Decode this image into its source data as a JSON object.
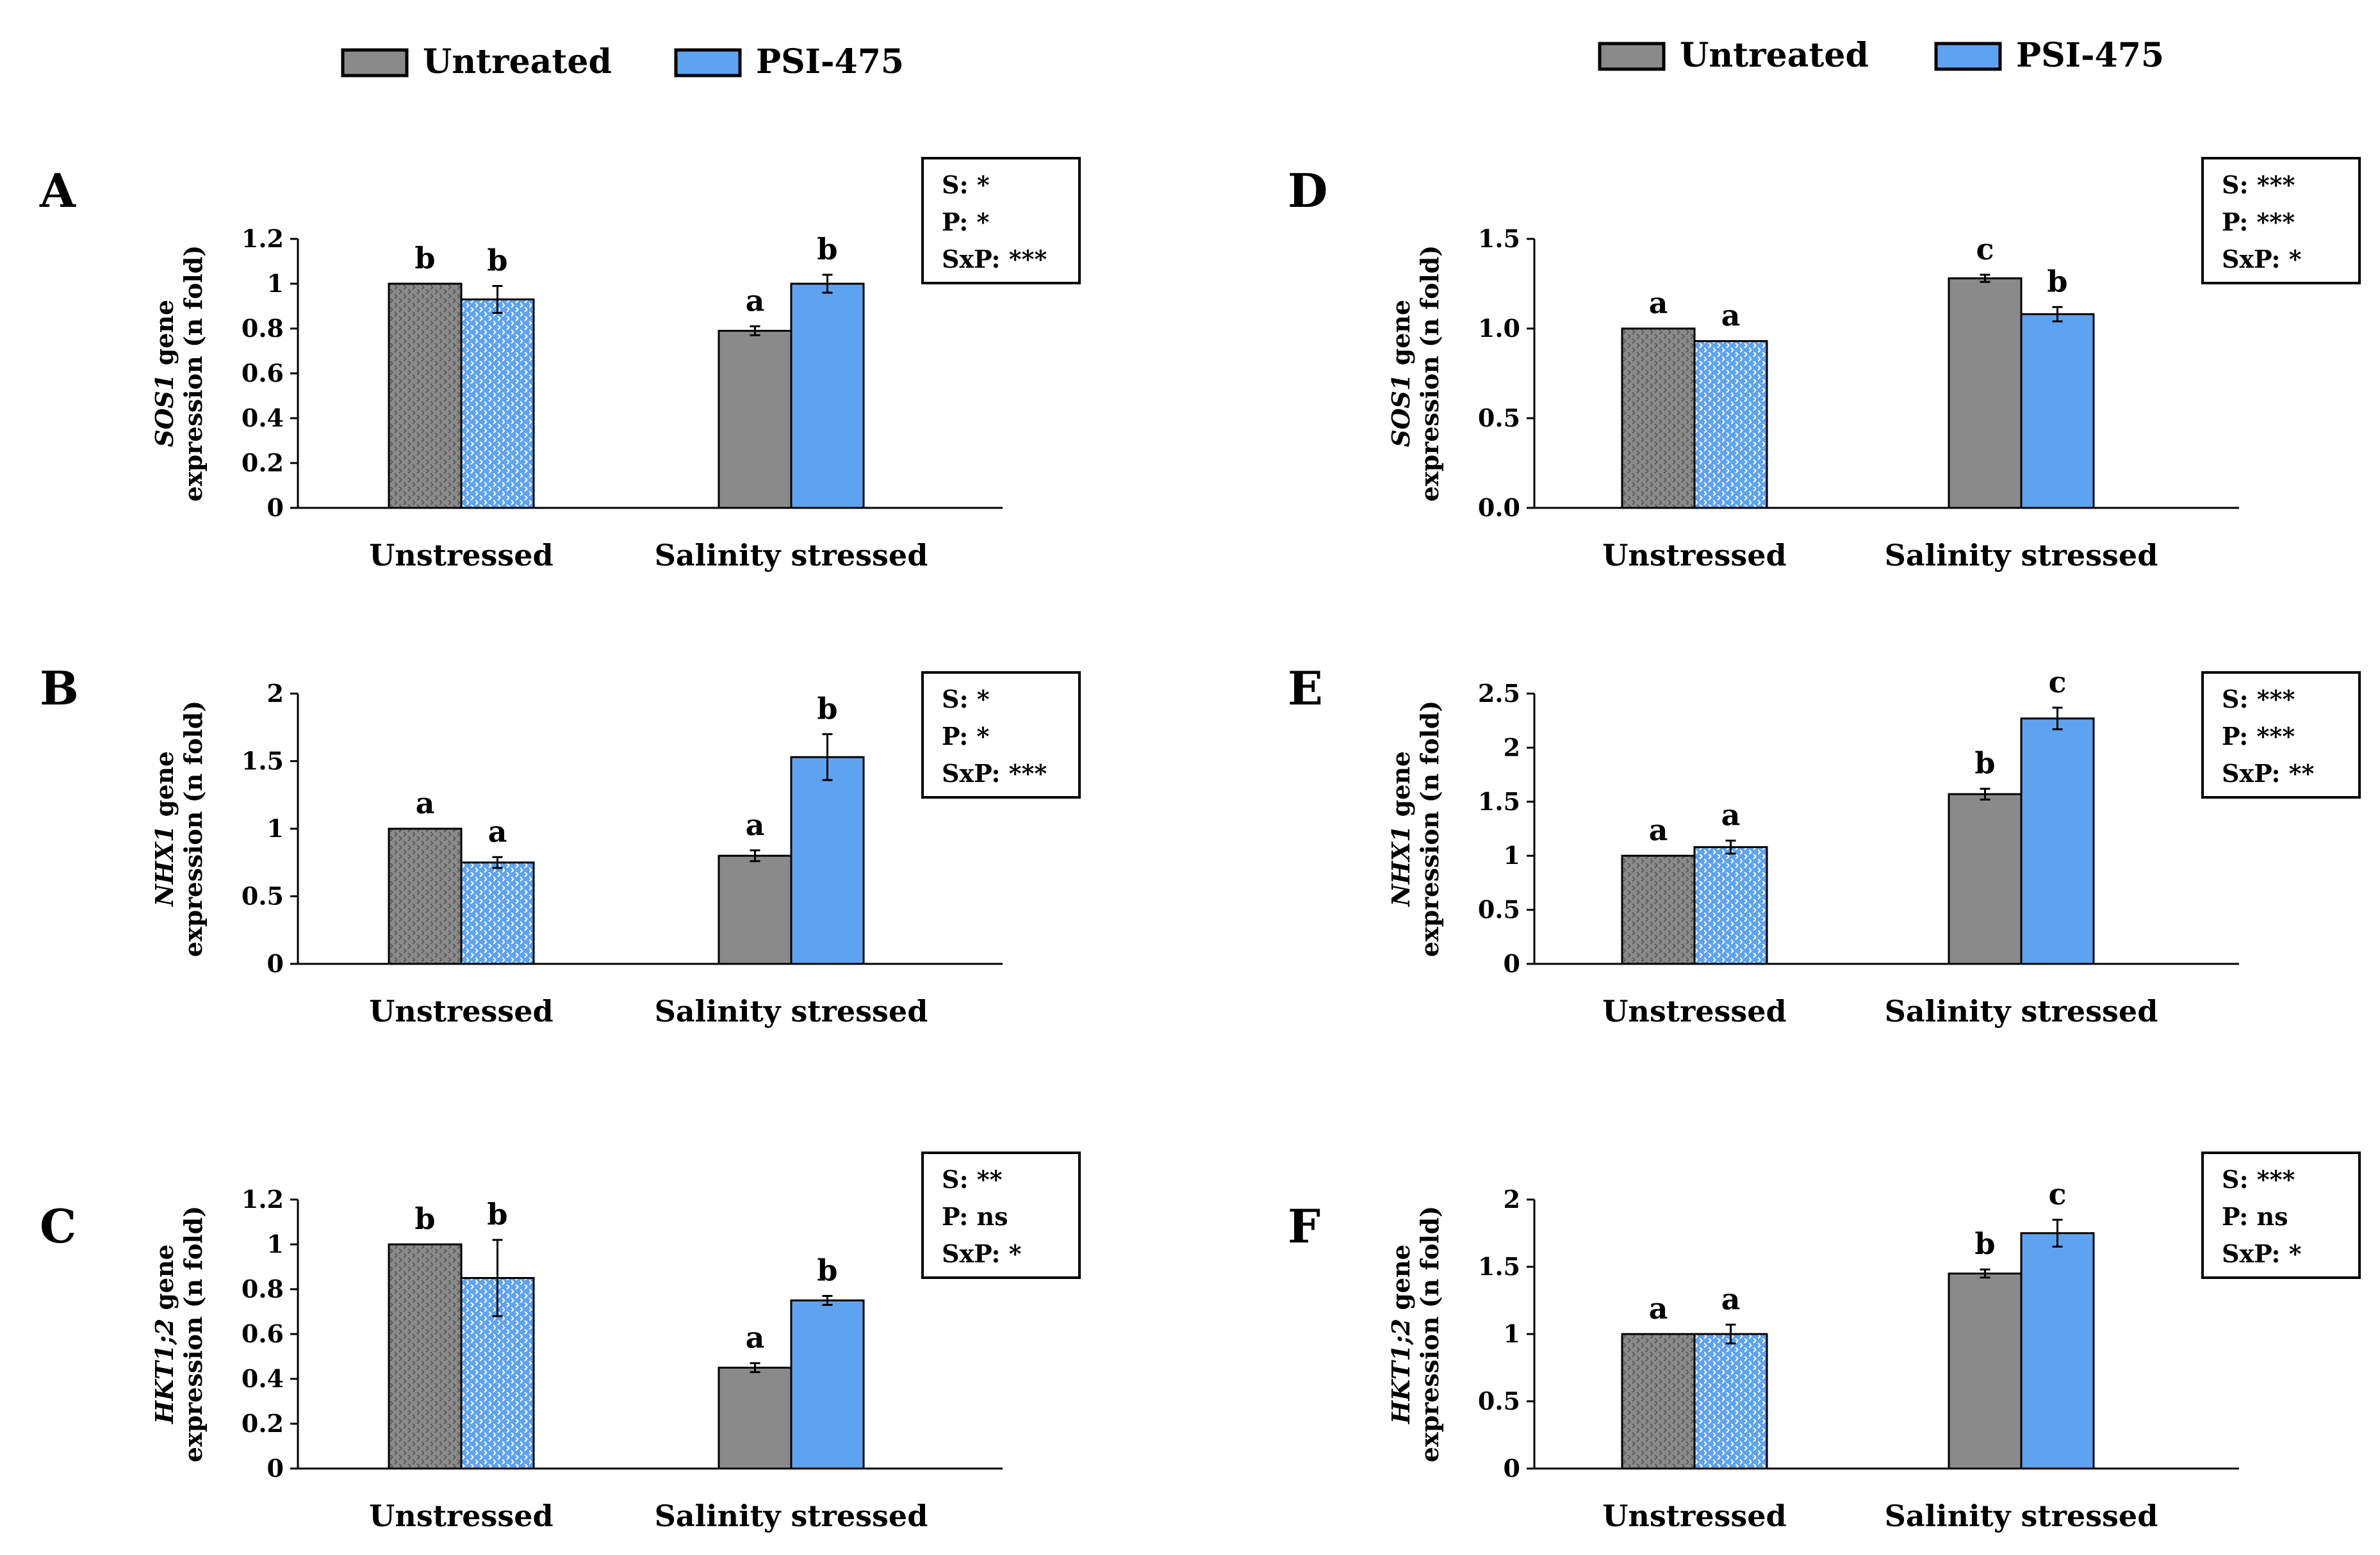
{
  "colors": {
    "untreated": "#8a8a8a",
    "psi475": "#5ea3f2",
    "axis": "#000000"
  },
  "legends": [
    {
      "items": [
        {
          "label": "Untreated",
          "series": "untreated"
        },
        {
          "label": "PSI-475",
          "series": "psi475"
        }
      ]
    },
    {
      "items": [
        {
          "label": "Untreated",
          "series": "untreated"
        },
        {
          "label": "PSI-475",
          "series": "psi475"
        }
      ]
    }
  ],
  "chart_data": [
    {
      "panel": "A",
      "type": "bar",
      "ylabel_gene": "SOS1",
      "ylabel_rest": " gene",
      "ylabel_line2": "expression (n fold)",
      "categories": [
        "Unstressed",
        "Salinity stressed"
      ],
      "ylim": [
        0,
        1.2
      ],
      "yticks": [
        {
          "value": 0,
          "label": "0"
        },
        {
          "value": 0.2,
          "label": "0.2"
        },
        {
          "value": 0.4,
          "label": "0.4"
        },
        {
          "value": 0.6,
          "label": "0.6"
        },
        {
          "value": 0.8,
          "label": "0.8"
        },
        {
          "value": 1.0,
          "label": "1"
        },
        {
          "value": 1.2,
          "label": "1.2"
        }
      ],
      "series": [
        {
          "name": "Untreated",
          "key": "untreated",
          "values": [
            1.0,
            0.79
          ],
          "errors": [
            0,
            0.02
          ],
          "letters": [
            "b",
            "a"
          ]
        },
        {
          "name": "PSI-475",
          "key": "psi475",
          "values": [
            0.93,
            1.0
          ],
          "errors": [
            0.06,
            0.04
          ],
          "letters": [
            "b",
            "b"
          ]
        }
      ],
      "stats": [
        "S: *",
        "P: *",
        "SxP: ***"
      ]
    },
    {
      "panel": "B",
      "type": "bar",
      "ylabel_gene": "NHX1",
      "ylabel_rest": " gene",
      "ylabel_line2": "expression (n fold)",
      "categories": [
        "Unstressed",
        "Salinity stressed"
      ],
      "ylim": [
        0,
        2
      ],
      "yticks": [
        {
          "value": 0,
          "label": "0"
        },
        {
          "value": 0.5,
          "label": "0.5"
        },
        {
          "value": 1.0,
          "label": "1"
        },
        {
          "value": 1.5,
          "label": "1.5"
        },
        {
          "value": 2.0,
          "label": "2"
        }
      ],
      "series": [
        {
          "name": "Untreated",
          "key": "untreated",
          "values": [
            1.0,
            0.8
          ],
          "errors": [
            0,
            0.04
          ],
          "letters": [
            "a",
            "a"
          ]
        },
        {
          "name": "PSI-475",
          "key": "psi475",
          "values": [
            0.75,
            1.53
          ],
          "errors": [
            0.04,
            0.17
          ],
          "letters": [
            "a",
            "b"
          ]
        }
      ],
      "stats": [
        "S: *",
        "P: *",
        "SxP: ***"
      ]
    },
    {
      "panel": "C",
      "type": "bar",
      "ylabel_gene": "HKT1;2",
      "ylabel_rest": " gene",
      "ylabel_line2": "expression (n fold)",
      "categories": [
        "Unstressed",
        "Salinity stressed"
      ],
      "ylim": [
        0,
        1.2
      ],
      "yticks": [
        {
          "value": 0,
          "label": "0"
        },
        {
          "value": 0.2,
          "label": "0.2"
        },
        {
          "value": 0.4,
          "label": "0.4"
        },
        {
          "value": 0.6,
          "label": "0.6"
        },
        {
          "value": 0.8,
          "label": "0.8"
        },
        {
          "value": 1.0,
          "label": "1"
        },
        {
          "value": 1.2,
          "label": "1.2"
        }
      ],
      "series": [
        {
          "name": "Untreated",
          "key": "untreated",
          "values": [
            1.0,
            0.45
          ],
          "errors": [
            0,
            0.02
          ],
          "letters": [
            "b",
            "a"
          ]
        },
        {
          "name": "PSI-475",
          "key": "psi475",
          "values": [
            0.85,
            0.75
          ],
          "errors": [
            0.17,
            0.02
          ],
          "letters": [
            "b",
            "b"
          ]
        }
      ],
      "stats": [
        "S: **",
        "P: ns",
        "SxP: *"
      ]
    },
    {
      "panel": "D",
      "type": "bar",
      "ylabel_gene": "SOS1",
      "ylabel_rest": " gene",
      "ylabel_line2": "expression (n fold)",
      "categories": [
        "Unstressed",
        "Salinity stressed"
      ],
      "ylim": [
        0,
        1.5
      ],
      "yticks": [
        {
          "value": 0,
          "label": "0.0"
        },
        {
          "value": 0.5,
          "label": "0.5"
        },
        {
          "value": 1.0,
          "label": "1.0"
        },
        {
          "value": 1.5,
          "label": "1.5"
        }
      ],
      "series": [
        {
          "name": "Untreated",
          "key": "untreated",
          "values": [
            1.0,
            1.28
          ],
          "errors": [
            0,
            0.02
          ],
          "letters": [
            "a",
            "c"
          ]
        },
        {
          "name": "PSI-475",
          "key": "psi475",
          "values": [
            0.93,
            1.08
          ],
          "errors": [
            0,
            0.04
          ],
          "letters": [
            "a",
            "b"
          ]
        }
      ],
      "stats": [
        "S: ***",
        "P: ***",
        "SxP: *"
      ]
    },
    {
      "panel": "E",
      "type": "bar",
      "ylabel_gene": "NHX1",
      "ylabel_rest": " gene",
      "ylabel_line2": "expression (n fold)",
      "categories": [
        "Unstressed",
        "Salinity stressed"
      ],
      "ylim": [
        0,
        2.5
      ],
      "yticks": [
        {
          "value": 0,
          "label": "0"
        },
        {
          "value": 0.5,
          "label": "0.5"
        },
        {
          "value": 1.0,
          "label": "1"
        },
        {
          "value": 1.5,
          "label": "1.5"
        },
        {
          "value": 2.0,
          "label": "2"
        },
        {
          "value": 2.5,
          "label": "2.5"
        }
      ],
      "series": [
        {
          "name": "Untreated",
          "key": "untreated",
          "values": [
            1.0,
            1.57
          ],
          "errors": [
            0,
            0.05
          ],
          "letters": [
            "a",
            "b"
          ]
        },
        {
          "name": "PSI-475",
          "key": "psi475",
          "values": [
            1.08,
            2.27
          ],
          "errors": [
            0.06,
            0.1
          ],
          "letters": [
            "a",
            "c"
          ]
        }
      ],
      "stats": [
        "S: ***",
        "P: ***",
        "SxP: **"
      ]
    },
    {
      "panel": "F",
      "type": "bar",
      "ylabel_gene": "HKT1;2",
      "ylabel_rest": " gene",
      "ylabel_line2": "expression (n fold)",
      "categories": [
        "Unstressed",
        "Salinity stressed"
      ],
      "ylim": [
        0,
        2
      ],
      "yticks": [
        {
          "value": 0,
          "label": "0"
        },
        {
          "value": 0.5,
          "label": "0.5"
        },
        {
          "value": 1.0,
          "label": "1"
        },
        {
          "value": 1.5,
          "label": "1.5"
        },
        {
          "value": 2.0,
          "label": "2"
        }
      ],
      "series": [
        {
          "name": "Untreated",
          "key": "untreated",
          "values": [
            1.0,
            1.45
          ],
          "errors": [
            0,
            0.03
          ],
          "letters": [
            "a",
            "b"
          ]
        },
        {
          "name": "PSI-475",
          "key": "psi475",
          "values": [
            1.0,
            1.75
          ],
          "errors": [
            0.07,
            0.1
          ],
          "letters": [
            "a",
            "c"
          ]
        }
      ],
      "stats": [
        "S: ***",
        "P: ns",
        "SxP: *"
      ]
    }
  ]
}
